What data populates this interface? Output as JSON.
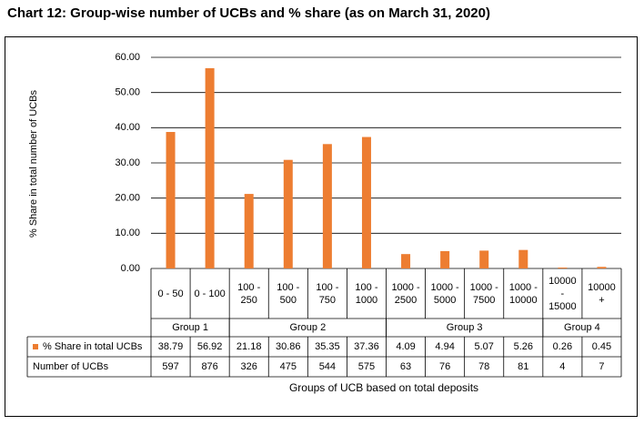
{
  "chart_data": {
    "type": "bar",
    "title": "Chart 12: Group-wise number of UCBs and % share (as on March 31, 2020)",
    "y_label": "% Share in total number of UCBs",
    "x_label": "Groups of UCB based on total deposits",
    "groups": [
      {
        "name": "Group 1",
        "categories": [
          "0 - 50",
          "0 - 100"
        ]
      },
      {
        "name": "Group 2",
        "categories": [
          "100 - 250",
          "100 - 500",
          "100 - 750",
          "100 - 1000"
        ]
      },
      {
        "name": "Group 3",
        "categories": [
          "1000 - 2500",
          "1000 - 5000",
          "1000 - 7500",
          "1000 - 10000"
        ]
      },
      {
        "name": "Group 4",
        "categories": [
          "10000 - 15000",
          "10000 +"
        ]
      }
    ],
    "series": [
      {
        "name": "% Share in total UCBs",
        "color": "#ed7d31",
        "values": [
          38.79,
          56.92,
          21.18,
          30.86,
          35.35,
          37.36,
          4.09,
          4.94,
          5.07,
          5.26,
          0.26,
          0.45
        ]
      }
    ],
    "table": {
      "rows": [
        {
          "name": "Number of UCBs",
          "values": [
            597,
            876,
            326,
            475,
            544,
            575,
            63,
            76,
            78,
            81,
            4,
            7
          ]
        }
      ]
    },
    "ylim": [
      0,
      60
    ],
    "yticks": [
      {
        "value": 0,
        "label": "0.00"
      },
      {
        "value": 10,
        "label": "10.00"
      },
      {
        "value": 20,
        "label": "20.00"
      },
      {
        "value": 30,
        "label": "30.00"
      },
      {
        "value": 40,
        "label": "40.00"
      },
      {
        "value": 50,
        "label": "50.00"
      },
      {
        "value": 60,
        "label": "60.00"
      }
    ],
    "grid": true
  }
}
